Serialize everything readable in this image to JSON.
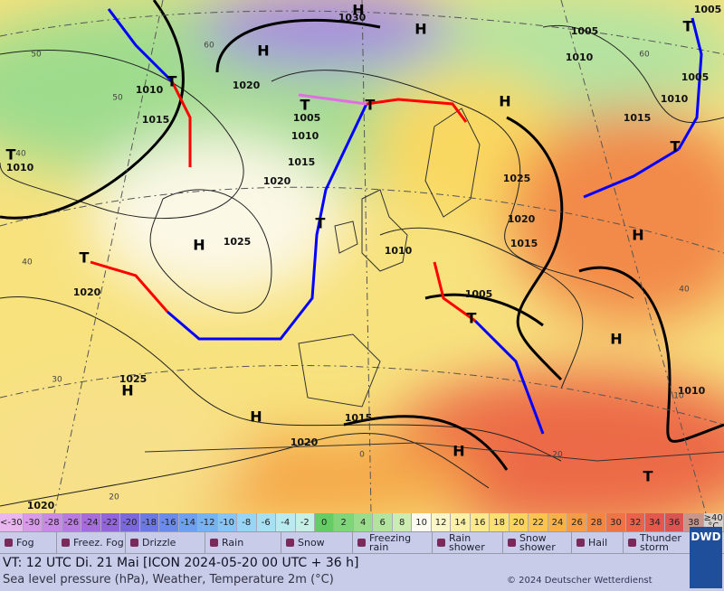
{
  "map": {
    "isobar_labels": [
      1030,
      1020,
      1010,
      1015,
      1005,
      1010,
      1015,
      1020,
      1025,
      1010,
      1020,
      1025,
      1015,
      1005,
      1015,
      1020,
      1025,
      1010,
      1005,
      1010,
      1005,
      1005,
      1015,
      1010,
      1020,
      1020,
      1010
    ],
    "high_centers": [
      "H",
      "H",
      "H",
      "H",
      "H",
      "H",
      "H",
      "H",
      "H",
      "H"
    ],
    "low_centers": [
      "T",
      "T",
      "T",
      "T",
      "T",
      "T",
      "T",
      "T",
      "T",
      "T"
    ],
    "grid_labels": [
      60,
      50,
      40,
      40,
      30,
      20,
      0,
      20,
      40,
      60,
      50,
      10
    ]
  },
  "temperature_scale": {
    "entries": [
      {
        "label": "<-30",
        "color": "#e9b6f0"
      },
      {
        "label": "-30",
        "color": "#d79be8"
      },
      {
        "label": "-28",
        "color": "#c98ae3"
      },
      {
        "label": "-26",
        "color": "#b87be0"
      },
      {
        "label": "-24",
        "color": "#a56ddc"
      },
      {
        "label": "-22",
        "color": "#9266d8"
      },
      {
        "label": "-20",
        "color": "#7b68dc"
      },
      {
        "label": "-18",
        "color": "#6c78e3"
      },
      {
        "label": "-16",
        "color": "#6b8bea"
      },
      {
        "label": "-14",
        "color": "#6fa0ef"
      },
      {
        "label": "-12",
        "color": "#76b3f3"
      },
      {
        "label": "-10",
        "color": "#86c5f5"
      },
      {
        "label": "-8",
        "color": "#97d4f5"
      },
      {
        "label": "-6",
        "color": "#a8e0f3"
      },
      {
        "label": "-4",
        "color": "#b8eaef"
      },
      {
        "label": "-2",
        "color": "#c6f0e6"
      },
      {
        "label": "0",
        "color": "#66cc66"
      },
      {
        "label": "2",
        "color": "#80d47a"
      },
      {
        "label": "4",
        "color": "#9adc8c"
      },
      {
        "label": "6",
        "color": "#b3e49f"
      },
      {
        "label": "8",
        "color": "#ccecb3"
      },
      {
        "label": "10",
        "color": "#fbfbf0"
      },
      {
        "label": "12",
        "color": "#fbf6c8"
      },
      {
        "label": "14",
        "color": "#fbf0a8"
      },
      {
        "label": "16",
        "color": "#fbe98c"
      },
      {
        "label": "18",
        "color": "#fbe074"
      },
      {
        "label": "20",
        "color": "#fbd460"
      },
      {
        "label": "22",
        "color": "#fbc350"
      },
      {
        "label": "24",
        "color": "#f9b046"
      },
      {
        "label": "26",
        "color": "#f69c44"
      },
      {
        "label": "28",
        "color": "#f28744"
      },
      {
        "label": "30",
        "color": "#ee7346"
      },
      {
        "label": "32",
        "color": "#ea6248"
      },
      {
        "label": "34",
        "color": "#e5574c"
      },
      {
        "label": "36",
        "color": "#dc5452"
      },
      {
        "label": "38",
        "color": "#c8968a"
      },
      {
        "label": "≥40 °C",
        "color": "#d8d0c8"
      }
    ]
  },
  "weather_legend": [
    "Fog",
    "Freez. Fog",
    "Drizzle",
    "Rain",
    "Snow",
    "Freezing rain",
    "Rain shower",
    "Snow shower",
    "Hail",
    "Thunder storm"
  ],
  "footer": {
    "valid_time": "VT: 12 UTC Di.  21 Mai [ICON 2024-05-20  00 UTC + 36 h]",
    "description": "Sea level pressure (hPa), Weather, Temperature 2m (°C)",
    "copyright": "© 2024 Deutscher Wetterdienst",
    "logo": "DWD"
  }
}
